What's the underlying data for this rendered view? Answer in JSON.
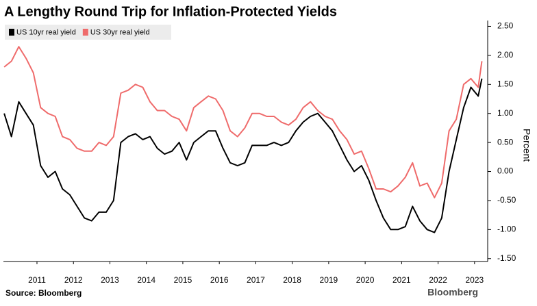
{
  "chart_data": {
    "type": "line",
    "title": "A Lengthy Round Trip for Inflation-Protected Yields",
    "y_label": "Percent",
    "source": "Source: Bloomberg",
    "watermark": "Bloomberg",
    "legend": "top-left",
    "x": [
      2010.1,
      2010.3,
      2010.5,
      2010.7,
      2010.9,
      2011.1,
      2011.3,
      2011.5,
      2011.7,
      2011.9,
      2012.1,
      2012.3,
      2012.5,
      2012.7,
      2012.9,
      2013.1,
      2013.3,
      2013.5,
      2013.7,
      2013.9,
      2014.1,
      2014.3,
      2014.5,
      2014.7,
      2014.9,
      2015.1,
      2015.3,
      2015.5,
      2015.7,
      2015.9,
      2016.1,
      2016.3,
      2016.5,
      2016.7,
      2016.9,
      2017.1,
      2017.3,
      2017.5,
      2017.7,
      2017.9,
      2018.1,
      2018.3,
      2018.5,
      2018.7,
      2018.9,
      2019.1,
      2019.3,
      2019.5,
      2019.7,
      2019.9,
      2020.1,
      2020.3,
      2020.5,
      2020.7,
      2020.9,
      2021.1,
      2021.3,
      2021.5,
      2021.7,
      2021.9,
      2022.1,
      2022.3,
      2022.5,
      2022.7,
      2022.9,
      2023.1,
      2023.2
    ],
    "xlim": [
      2010.08,
      2023.36
    ],
    "xticks": [
      2011,
      2012,
      2013,
      2014,
      2015,
      2016,
      2017,
      2018,
      2019,
      2020,
      2021,
      2022,
      2023
    ],
    "ylim": [
      -1.55,
      2.6
    ],
    "yticks": [
      {
        "value": 2.5,
        "label": "2.50"
      },
      {
        "value": 2,
        "label": "2.00"
      },
      {
        "value": 1.5,
        "label": "1.50"
      },
      {
        "value": 1,
        "label": "1.00"
      },
      {
        "value": 0.5,
        "label": "0.50"
      },
      {
        "value": 0,
        "label": "0.00"
      },
      {
        "value": -0.5,
        "label": "-0.50"
      },
      {
        "value": -1,
        "label": "-1.00"
      },
      {
        "value": -1.5,
        "label": "-1.50"
      }
    ],
    "series": [
      {
        "name": "US 10yr real yield",
        "color": "#000000",
        "values": [
          1.0,
          0.6,
          1.2,
          1.0,
          0.8,
          0.1,
          -0.1,
          0.0,
          -0.3,
          -0.4,
          -0.6,
          -0.8,
          -0.85,
          -0.7,
          -0.7,
          -0.5,
          0.5,
          0.6,
          0.65,
          0.55,
          0.6,
          0.4,
          0.3,
          0.35,
          0.5,
          0.2,
          0.5,
          0.6,
          0.7,
          0.7,
          0.4,
          0.15,
          0.1,
          0.15,
          0.45,
          0.45,
          0.45,
          0.5,
          0.45,
          0.5,
          0.7,
          0.85,
          0.95,
          1.0,
          0.85,
          0.7,
          0.45,
          0.2,
          0.0,
          0.1,
          -0.15,
          -0.5,
          -0.8,
          -1.0,
          -1.0,
          -0.95,
          -0.6,
          -0.85,
          -1.0,
          -1.05,
          -0.8,
          0.0,
          0.55,
          1.1,
          1.45,
          1.3,
          1.6
        ]
      },
      {
        "name": "US 30yr real yield",
        "color": "#ef6b6b",
        "values": [
          1.8,
          1.9,
          2.15,
          1.95,
          1.7,
          1.1,
          1.0,
          0.95,
          0.6,
          0.55,
          0.4,
          0.35,
          0.35,
          0.5,
          0.45,
          0.6,
          1.35,
          1.4,
          1.5,
          1.45,
          1.2,
          1.05,
          1.05,
          0.95,
          0.9,
          0.7,
          1.1,
          1.2,
          1.3,
          1.25,
          1.05,
          0.7,
          0.6,
          0.75,
          1.0,
          1.0,
          0.95,
          0.95,
          0.85,
          0.8,
          0.9,
          1.1,
          1.2,
          1.05,
          0.95,
          0.9,
          0.7,
          0.55,
          0.3,
          0.35,
          0.05,
          -0.3,
          -0.3,
          -0.35,
          -0.25,
          -0.1,
          0.15,
          -0.25,
          -0.2,
          -0.45,
          -0.2,
          0.7,
          0.9,
          1.5,
          1.6,
          1.45,
          1.9
        ]
      }
    ]
  }
}
